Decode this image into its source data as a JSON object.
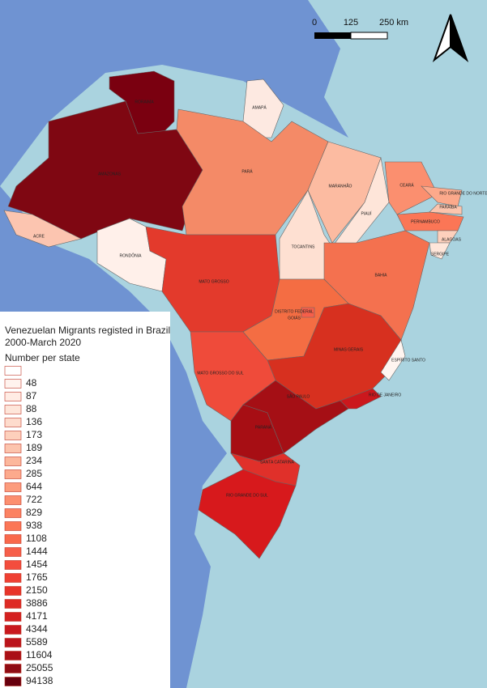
{
  "map": {
    "scale_bar": {
      "labels": [
        "0",
        "125",
        "250 km"
      ]
    },
    "states": [
      {
        "label": "RORAIMA",
        "color": "#7a0010"
      },
      {
        "label": "AMAPÁ",
        "color": "#fde9e1"
      },
      {
        "label": "AMAZONAS",
        "color": "#7f0712"
      },
      {
        "label": "PARÁ",
        "color": "#f48a67"
      },
      {
        "label": "MARANHÃO",
        "color": "#fcbba1"
      },
      {
        "label": "PIAUÍ",
        "color": "#fee5d9"
      },
      {
        "label": "CEARÁ",
        "color": "#fb8f6f"
      },
      {
        "label": "RIO GRANDE DO NORTE",
        "color": "#fca98b"
      },
      {
        "label": "PARAÍBA",
        "color": "#fcc4ad"
      },
      {
        "label": "PERNAMBUCO",
        "color": "#fb7656"
      },
      {
        "label": "ALAGOAS",
        "color": "#fdd0bc"
      },
      {
        "label": "SERGIPE",
        "color": "#fee6da"
      },
      {
        "label": "TOCANTINS",
        "color": "#fee0d2"
      },
      {
        "label": "BAHIA",
        "color": "#f4714f"
      },
      {
        "label": "ACRE",
        "color": "#fcc5b0"
      },
      {
        "label": "RONDÔNIA",
        "color": "#fff0ea"
      },
      {
        "label": "MATO GROSSO",
        "color": "#e33a2c"
      },
      {
        "label": "GOIÁS",
        "color": "#f46d43"
      },
      {
        "label": "DISTRITO FEDERAL",
        "color": "#f65f4a"
      },
      {
        "label": "MINAS GERAIS",
        "color": "#d7301f"
      },
      {
        "label": "ESPÍRITO SANTO",
        "color": "#fff5f0"
      },
      {
        "label": "MATO GROSSO DO SUL",
        "color": "#ef4b3a"
      },
      {
        "label": "SÃO PAULO",
        "color": "#a50f15"
      },
      {
        "label": "RIO DE JANEIRO",
        "color": "#cb181d"
      },
      {
        "label": "PARANÁ",
        "color": "#a70e14"
      },
      {
        "label": "SANTA CATARINA",
        "color": "#e0302a"
      },
      {
        "label": "RIO GRANDE DO SUL",
        "color": "#d7191c"
      }
    ],
    "legend": {
      "title": [
        "Venezuelan Migrants registed in Brazil",
        "2000-March 2020"
      ],
      "subtitle": "Number per state",
      "entries": [
        {
          "label": null,
          "color": "#ffffff"
        },
        {
          "label": 48,
          "color": "#fff3ee"
        },
        {
          "label": 87,
          "color": "#ffece4"
        },
        {
          "label": 88,
          "color": "#fee6da"
        },
        {
          "label": 136,
          "color": "#fedccd"
        },
        {
          "label": 173,
          "color": "#fdd0bc"
        },
        {
          "label": 189,
          "color": "#fcc4ad"
        },
        {
          "label": 234,
          "color": "#fcb79c"
        },
        {
          "label": 285,
          "color": "#fcaa8d"
        },
        {
          "label": 644,
          "color": "#fc9c7d"
        },
        {
          "label": 722,
          "color": "#fc8f6f"
        },
        {
          "label": 829,
          "color": "#fb8262"
        },
        {
          "label": 938,
          "color": "#fb7656"
        },
        {
          "label": 1108,
          "color": "#f9694c"
        },
        {
          "label": 1444,
          "color": "#f65f4a"
        },
        {
          "label": 1454,
          "color": "#f34d3d"
        },
        {
          "label": 1765,
          "color": "#ef4033"
        },
        {
          "label": 2150,
          "color": "#e83429"
        },
        {
          "label": 3886,
          "color": "#de2b25"
        },
        {
          "label": 4171,
          "color": "#d42020"
        },
        {
          "label": 4344,
          "color": "#c9181d"
        },
        {
          "label": 5589,
          "color": "#bb141b"
        },
        {
          "label": 11604,
          "color": "#aa1016"
        },
        {
          "label": 25055,
          "color": "#8f0b13"
        },
        {
          "label": 94138,
          "color": "#67000d"
        }
      ]
    }
  }
}
